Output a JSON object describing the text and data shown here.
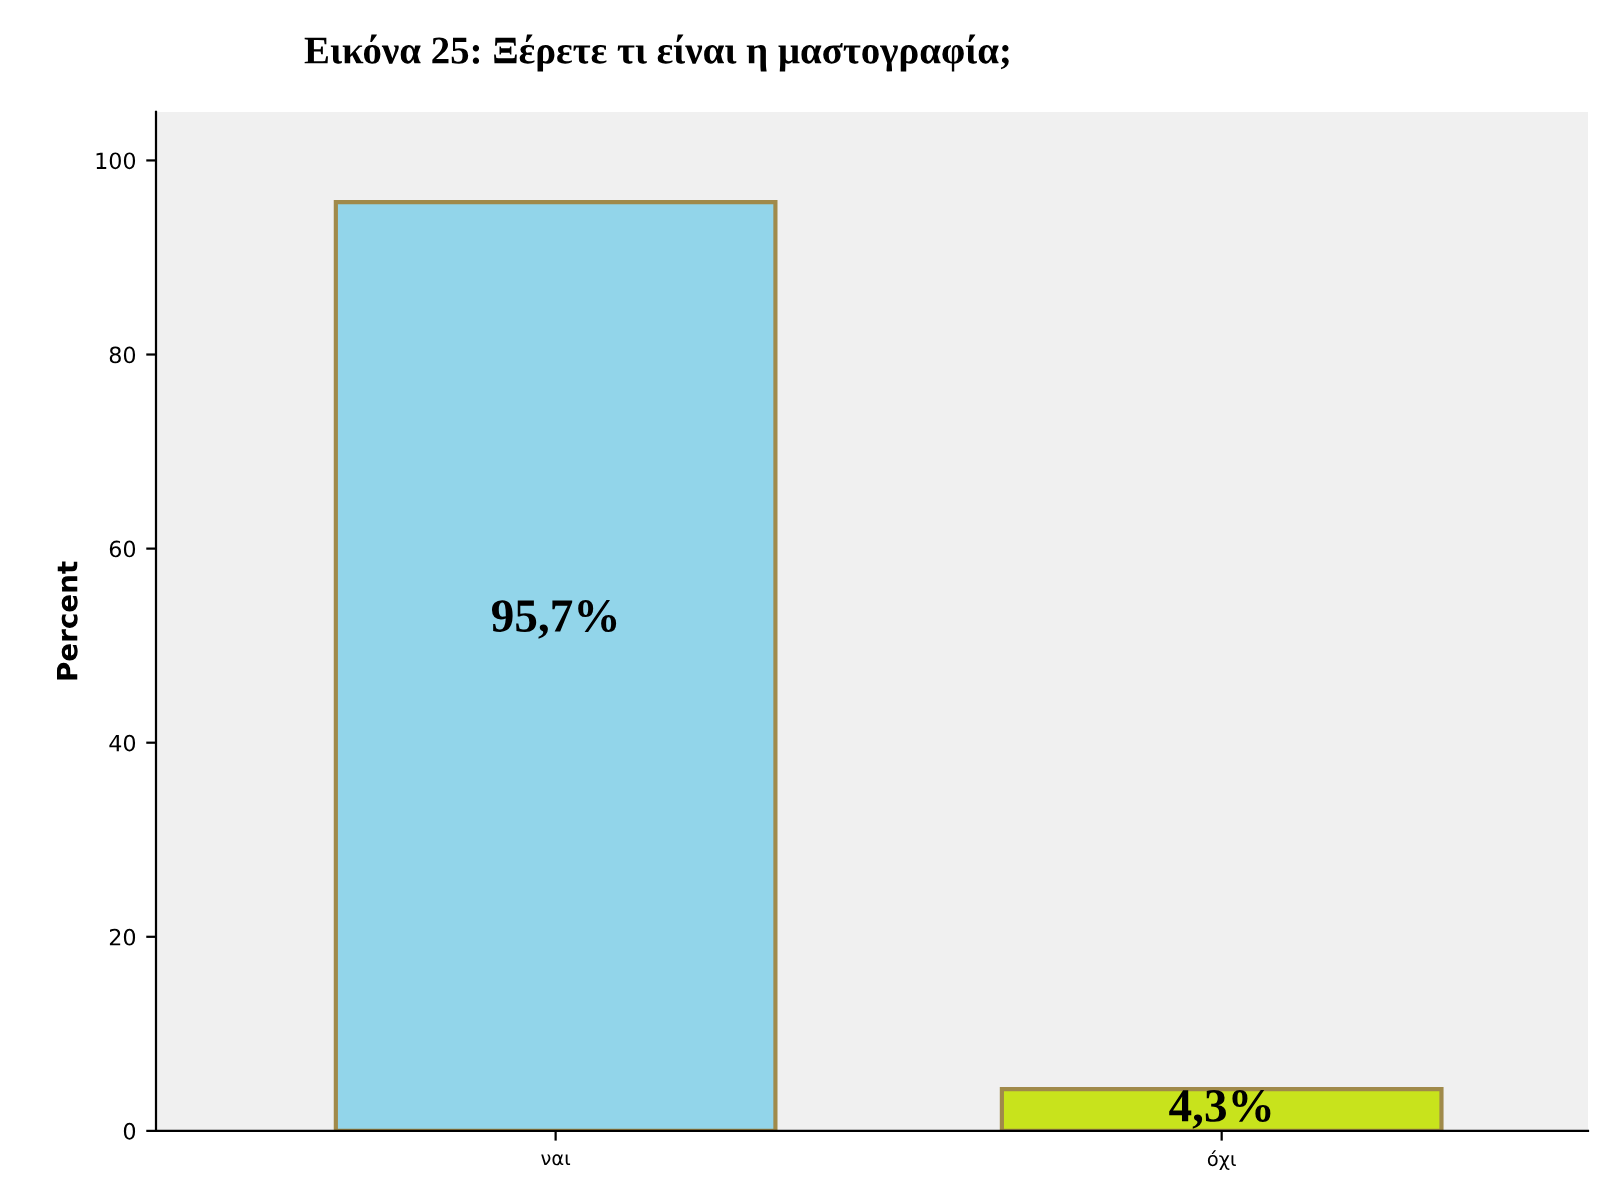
{
  "chart_data": {
    "type": "bar",
    "title": "Εικόνα 25: Ξέρετε τι είναι η μαστογραφία;",
    "ylabel": "Percent",
    "categories": [
      "ναι",
      "όχι"
    ],
    "values": [
      95.7,
      4.3
    ],
    "colors": [
      "#92d5ea",
      "#c8e31c"
    ],
    "value_labels": [
      "95,7%",
      "4,3%"
    ],
    "ylim": [
      0,
      105
    ],
    "yticks": [
      0,
      20,
      40,
      60,
      80,
      100
    ],
    "grid": false
  }
}
